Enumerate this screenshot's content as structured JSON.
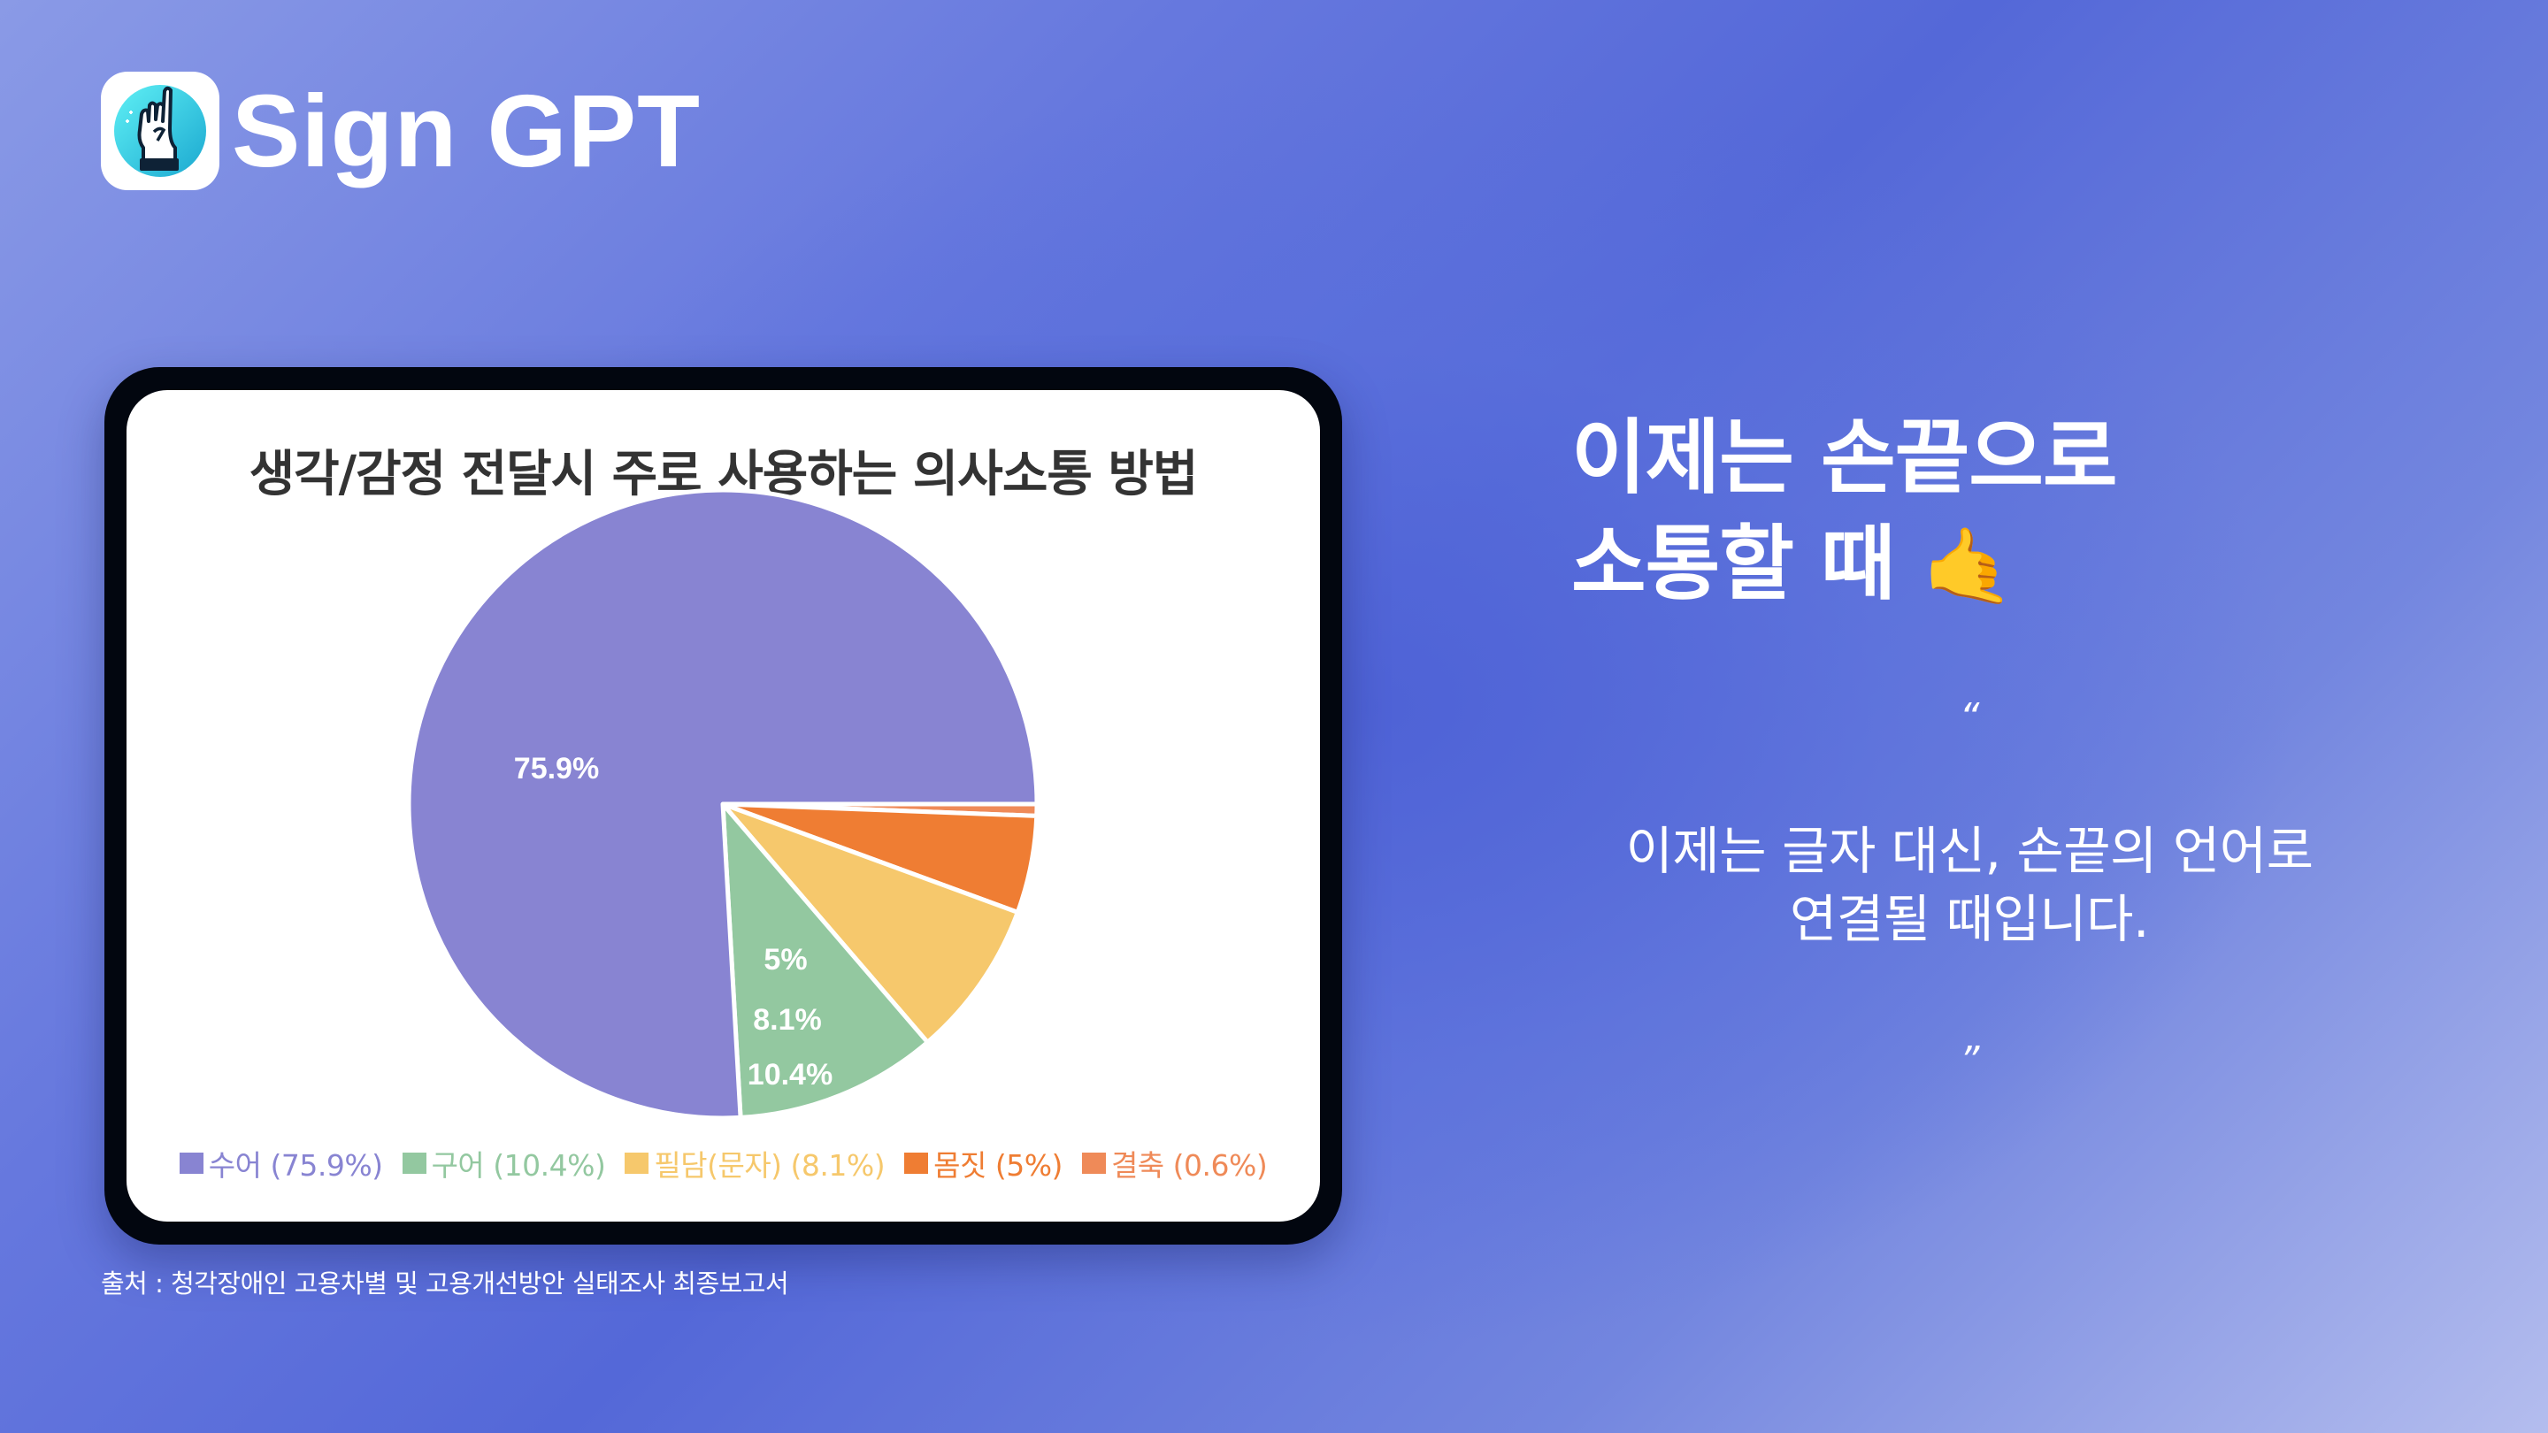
{
  "brand": {
    "name": "Sign GPT",
    "logo_icon": "sign-hand-icon"
  },
  "chart_card": {
    "title": "생각/감정 전달시 주로 사용하는 의사소통 방법"
  },
  "chart_data": {
    "type": "pie",
    "title": "생각/감정 전달시 주로 사용하는 의사소통 방법",
    "start_angle_deg": 0,
    "direction": "clockwise",
    "categories": [
      "수어",
      "구어",
      "필담(문자)",
      "몸짓",
      "결축"
    ],
    "values": [
      75.9,
      10.4,
      8.1,
      5,
      0.6
    ],
    "colors": [
      "#8884d2",
      "#93c8a0",
      "#f6c86c",
      "#ef7d33",
      "#ef8a58"
    ],
    "slice_labels": [
      "75.9%",
      "10.4%",
      "8.1%",
      "5%",
      ""
    ],
    "legend": [
      "수어 (75.9%)",
      "구어 (10.4%)",
      "필담(문자) (8.1%)",
      "몸짓 (5%)",
      "결축 (0.6%)"
    ],
    "legend_position": "bottom",
    "draw_order": [
      "결축",
      "몸짓",
      "필담(문자)",
      "구어",
      "수어"
    ]
  },
  "headline": {
    "line1": "이제는 손끝으로",
    "line2": "소통할 때",
    "emoji": "🤙"
  },
  "quote": {
    "open_mark": "“",
    "line1": "이제는 글자 대신, 손끝의 언어로",
    "line2": "연결될 때입니다.",
    "close_mark": "”"
  },
  "source": {
    "text": "출처 : 청각장애인 고용차별 및 고용개선방안 실태조사 최종보고서"
  }
}
